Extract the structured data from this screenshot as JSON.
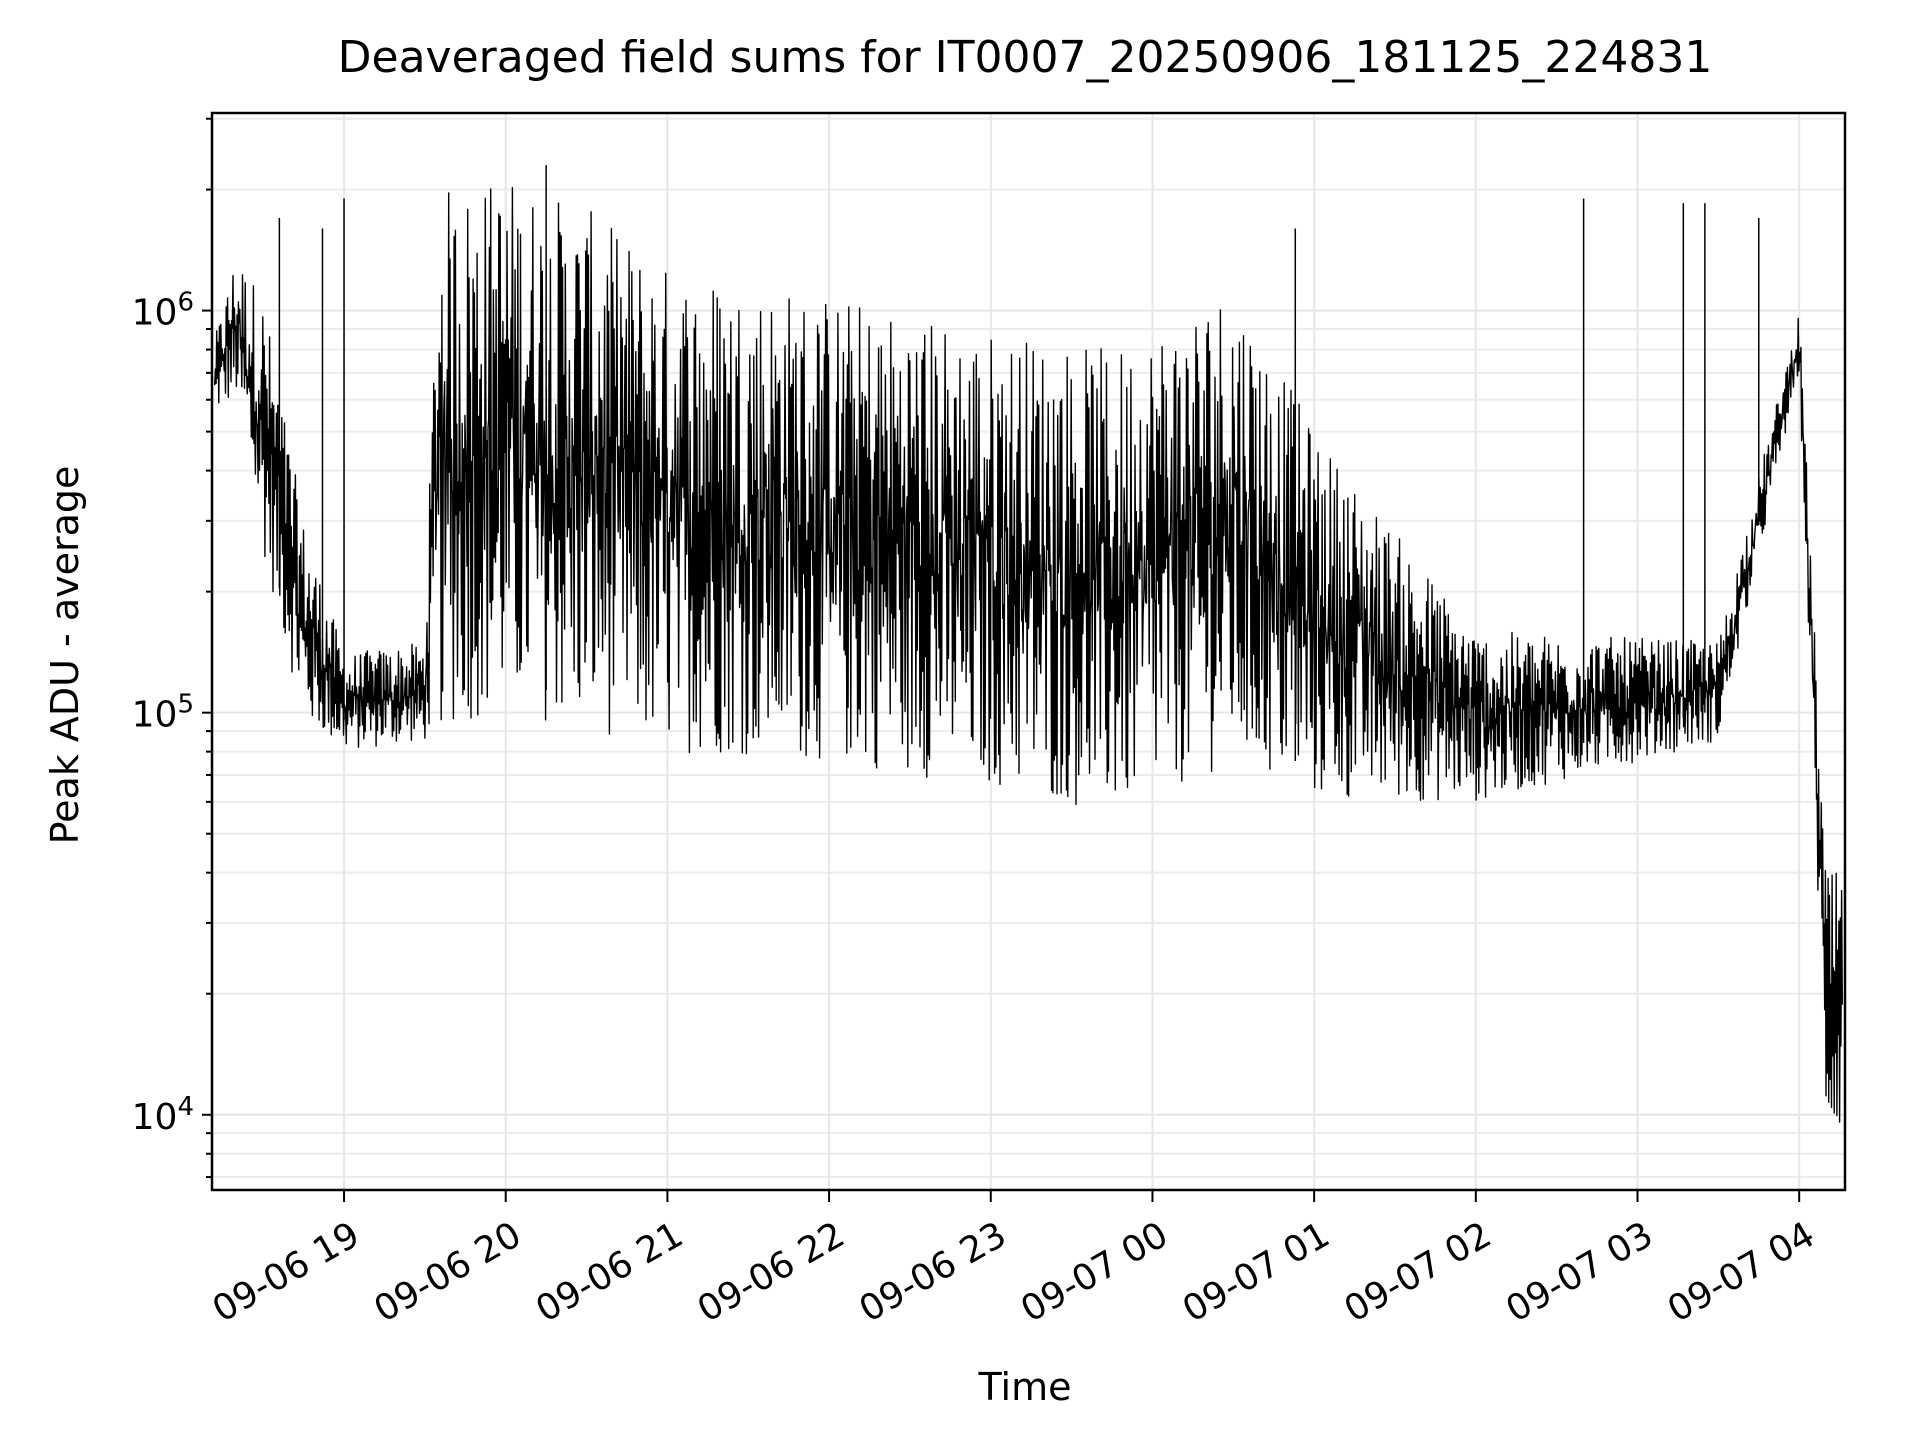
{
  "chart_data": {
    "type": "line",
    "title": "Deaveraged field sums for IT0007_20250906_181125_224831",
    "xlabel": "Time",
    "ylabel": "Peak ADU - average",
    "yscale": "log",
    "grid": true,
    "line_color": "#000000",
    "grid_color": "#e6e6e6",
    "x_ticks": [
      "09-06 19",
      "09-06 20",
      "09-06 21",
      "09-06 22",
      "09-06 23",
      "09-07 00",
      "09-07 01",
      "09-07 02",
      "09-07 03",
      "09-07 04"
    ],
    "y_ticks": [
      {
        "value": 10000,
        "label": "10",
        "exp": "4"
      },
      {
        "value": 100000,
        "label": "10",
        "exp": "5"
      },
      {
        "value": 1000000,
        "label": "10",
        "exp": "6"
      }
    ],
    "xlim": [
      "2025-09-06 18:11",
      "2025-09-07 04:17"
    ],
    "ylim": [
      6500,
      3100000
    ],
    "series": [
      {
        "x_hours_note": "time in hours of day",
        "envelope": [
          {
            "t": "2025-09-06 18:12",
            "low": 550000,
            "high": 850000
          },
          {
            "t": "2025-09-06 18:20",
            "low": 600000,
            "high": 1400000
          },
          {
            "t": "2025-09-06 18:30",
            "low": 250000,
            "high": 1100000
          },
          {
            "t": "2025-09-06 18:45",
            "low": 95000,
            "high": 300000
          },
          {
            "t": "2025-09-06 19:00",
            "low": 80000,
            "high": 140000
          },
          {
            "t": "2025-09-06 19:30",
            "low": 85000,
            "high": 150000
          },
          {
            "t": "2025-09-06 19:35",
            "low": 90000,
            "high": 2000000
          },
          {
            "t": "2025-09-06 20:00",
            "low": 100000,
            "high": 2200000
          },
          {
            "t": "2025-09-06 20:30",
            "low": 90000,
            "high": 1800000
          },
          {
            "t": "2025-09-06 21:00",
            "low": 80000,
            "high": 1300000
          },
          {
            "t": "2025-09-06 22:00",
            "low": 75000,
            "high": 1100000
          },
          {
            "t": "2025-09-06 23:00",
            "low": 65000,
            "high": 900000
          },
          {
            "t": "2025-09-06 23:45",
            "low": 55000,
            "high": 800000
          },
          {
            "t": "2025-09-07 00:30",
            "low": 75000,
            "high": 1200000
          },
          {
            "t": "2025-09-07 01:00",
            "low": 60000,
            "high": 500000
          },
          {
            "t": "2025-09-07 02:00",
            "low": 60000,
            "high": 160000
          },
          {
            "t": "2025-09-07 03:30",
            "low": 85000,
            "high": 150000
          },
          {
            "t": "2025-09-07 04:00",
            "low": 700000,
            "high": 1000000
          },
          {
            "t": "2025-09-07 04:10",
            "low": 9000,
            "high": 40000
          }
        ],
        "spikes": [
          {
            "t": "2025-09-06 18:36",
            "value": 1700000
          },
          {
            "t": "2025-09-06 18:52",
            "value": 1600000
          },
          {
            "t": "2025-09-06 19:00",
            "value": 1900000
          },
          {
            "t": "2025-09-06 20:15",
            "value": 2300000
          },
          {
            "t": "2025-09-07 00:53",
            "value": 1600000
          },
          {
            "t": "2025-09-07 02:40",
            "value": 1900000
          },
          {
            "t": "2025-09-07 03:17",
            "value": 1850000
          },
          {
            "t": "2025-09-07 03:25",
            "value": 1850000
          },
          {
            "t": "2025-09-07 03:45",
            "value": 1700000
          }
        ]
      }
    ]
  }
}
